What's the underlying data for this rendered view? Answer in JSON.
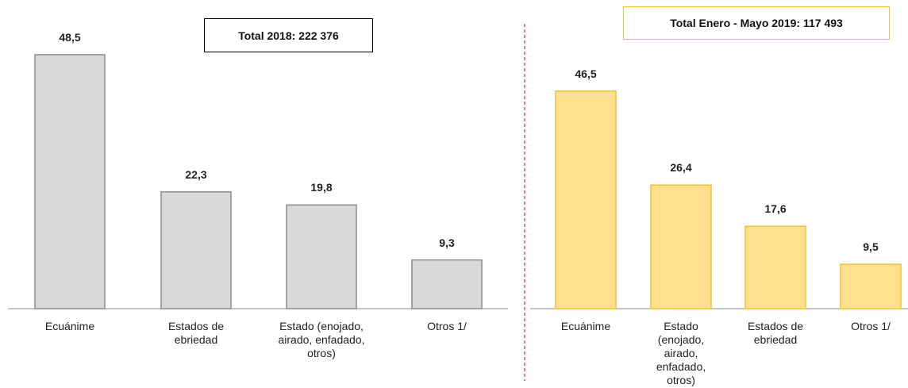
{
  "chart_data": [
    {
      "type": "bar",
      "annotation": "Total 2018:  222 376",
      "categories": [
        "Ecuánime",
        "Estados de ebriedad",
        "Estado (enojado, airado, enfadado, otros)",
        "Otros 1/"
      ],
      "values": [
        48.5,
        22.3,
        19.8,
        9.3
      ],
      "value_labels": [
        "48,5",
        "22,3",
        "19,8",
        "9,3"
      ],
      "color": "#d9d9d9",
      "edge_color": "#8c8c8c"
    },
    {
      "type": "bar",
      "annotation": "Total Enero - Mayo 2019:  117 493",
      "categories": [
        "Ecuánime",
        "Estado (enojado, airado, enfadado, otros)",
        "Estados de ebriedad",
        "Otros 1/"
      ],
      "values": [
        46.5,
        26.4,
        17.6,
        9.5
      ],
      "value_labels": [
        "46,5",
        "26,4",
        "17,6",
        "9,5"
      ],
      "color": "#ffe08c",
      "edge_color": "#f2c232"
    }
  ]
}
